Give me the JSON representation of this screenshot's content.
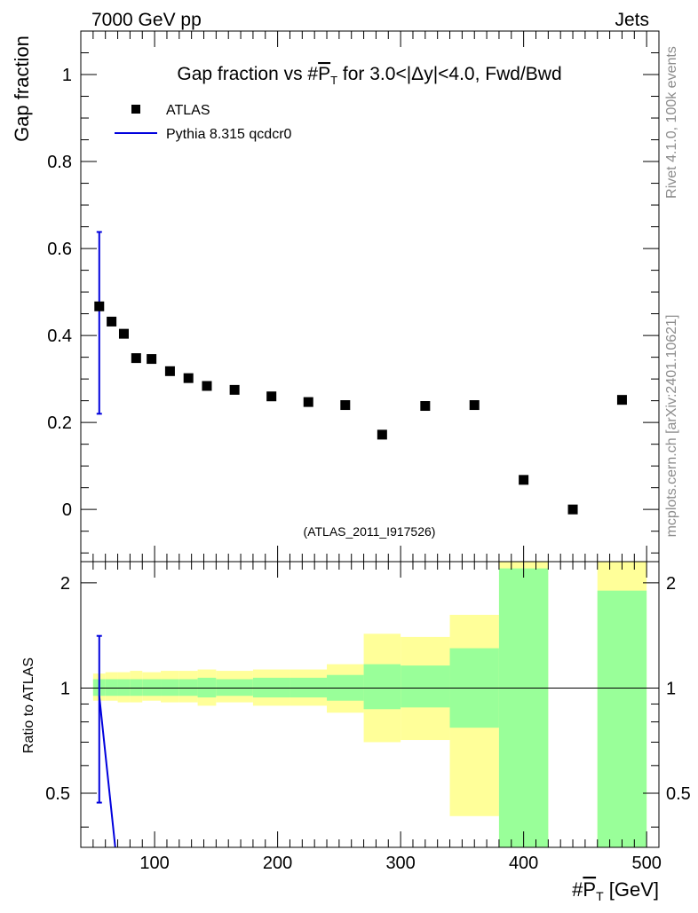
{
  "header": {
    "left": "7000 GeV pp",
    "right": "Jets"
  },
  "side_labels": {
    "rivet": "Rivet 4.1.0,  100k events",
    "mcplots": "mcplots.cern.ch [arXiv:2401.10621]"
  },
  "colors": {
    "data": "#000000",
    "mc": "#0000dd",
    "band_inner": "#99ff99",
    "band_outer": "#ffff99"
  },
  "chart_data": [
    {
      "type": "scatter",
      "title_parts": {
        "pre": "Gap fraction vs #",
        "sym": "P",
        "sub": "T",
        "post": " for 3.0<|Δy|<4.0, Fwd/Bwd"
      },
      "ylabel": "Gap fraction",
      "xlim": [
        40,
        510
      ],
      "ylim": [
        -0.12,
        1.1
      ],
      "yticks": [
        0,
        0.2,
        0.4,
        0.6,
        0.8,
        1
      ],
      "ytick_labels": [
        "0",
        "0.2",
        "0.4",
        "0.6",
        "0.8",
        "1"
      ],
      "annotation": "(ATLAS_2011_I917526)",
      "series": [
        {
          "name": "ATLAS",
          "marker": "square",
          "x": [
            55,
            65,
            75,
            85,
            97.5,
            112.5,
            127.5,
            142.5,
            165,
            195,
            225,
            255,
            285,
            320,
            360,
            400,
            440,
            480
          ],
          "y": [
            0.467,
            0.432,
            0.404,
            0.348,
            0.346,
            0.318,
            0.302,
            0.284,
            0.275,
            0.26,
            0.247,
            0.24,
            0.172,
            0.238,
            0.24,
            0.068,
            0.0,
            0.252
          ]
        },
        {
          "name": "Pythia 8.315 qcdcr0",
          "marker": "line",
          "x": [
            55
          ],
          "y": [
            0.43
          ],
          "yerr_low": [
            0.22
          ],
          "yerr_high": [
            0.638
          ]
        }
      ],
      "legend": [
        "ATLAS",
        "Pythia 8.315 qcdcr0"
      ]
    },
    {
      "type": "area",
      "ylabel": "Ratio to ATLAS",
      "xlabel_parts": {
        "pre": "#",
        "sym": "P",
        "sub": "T",
        "post": " [GeV]"
      },
      "xlim": [
        40,
        510
      ],
      "ylim": [
        0.35,
        2.3
      ],
      "yscale": "log",
      "yticks": [
        0.5,
        1,
        2
      ],
      "ytick_labels": [
        "0.5",
        "1",
        "2"
      ],
      "xticks": [
        100,
        200,
        300,
        400,
        500
      ],
      "xtick_labels": [
        "100",
        "200",
        "300",
        "400",
        "500"
      ],
      "reference_line": 1,
      "bins": [
        {
          "lo": 50,
          "hi": 60,
          "inner": [
            0.95,
            1.06
          ],
          "outer": [
            0.92,
            1.1
          ]
        },
        {
          "lo": 60,
          "hi": 70,
          "inner": [
            0.95,
            1.06
          ],
          "outer": [
            0.92,
            1.11
          ]
        },
        {
          "lo": 70,
          "hi": 80,
          "inner": [
            0.95,
            1.06
          ],
          "outer": [
            0.91,
            1.11
          ]
        },
        {
          "lo": 80,
          "hi": 90,
          "inner": [
            0.95,
            1.06
          ],
          "outer": [
            0.91,
            1.12
          ]
        },
        {
          "lo": 90,
          "hi": 105,
          "inner": [
            0.95,
            1.06
          ],
          "outer": [
            0.92,
            1.11
          ]
        },
        {
          "lo": 105,
          "hi": 120,
          "inner": [
            0.95,
            1.06
          ],
          "outer": [
            0.91,
            1.12
          ]
        },
        {
          "lo": 120,
          "hi": 135,
          "inner": [
            0.95,
            1.06
          ],
          "outer": [
            0.91,
            1.12
          ]
        },
        {
          "lo": 135,
          "hi": 150,
          "inner": [
            0.94,
            1.07
          ],
          "outer": [
            0.89,
            1.13
          ]
        },
        {
          "lo": 150,
          "hi": 180,
          "inner": [
            0.95,
            1.06
          ],
          "outer": [
            0.91,
            1.12
          ]
        },
        {
          "lo": 180,
          "hi": 210,
          "inner": [
            0.94,
            1.07
          ],
          "outer": [
            0.89,
            1.13
          ]
        },
        {
          "lo": 210,
          "hi": 240,
          "inner": [
            0.94,
            1.07
          ],
          "outer": [
            0.89,
            1.13
          ]
        },
        {
          "lo": 240,
          "hi": 270,
          "inner": [
            0.92,
            1.09
          ],
          "outer": [
            0.85,
            1.17
          ]
        },
        {
          "lo": 270,
          "hi": 300,
          "inner": [
            0.87,
            1.17
          ],
          "outer": [
            0.7,
            1.43
          ]
        },
        {
          "lo": 300,
          "hi": 340,
          "inner": [
            0.88,
            1.16
          ],
          "outer": [
            0.71,
            1.4
          ]
        },
        {
          "lo": 340,
          "hi": 380,
          "inner": [
            0.77,
            1.3
          ],
          "outer": [
            0.43,
            1.62
          ]
        },
        {
          "lo": 380,
          "hi": 420,
          "inner": [
            0.35,
            2.2
          ],
          "outer": [
            0.35,
            2.3
          ]
        },
        {
          "lo": 460,
          "hi": 500,
          "inner": [
            0.35,
            1.9
          ],
          "outer": [
            0.35,
            2.3
          ]
        }
      ],
      "mc_ratio": {
        "x": [
          55,
          68
        ],
        "y": [
          0.95,
          0.35
        ],
        "errbar_x": 55,
        "errbar_low": 0.47,
        "errbar_high": 1.41
      }
    }
  ]
}
